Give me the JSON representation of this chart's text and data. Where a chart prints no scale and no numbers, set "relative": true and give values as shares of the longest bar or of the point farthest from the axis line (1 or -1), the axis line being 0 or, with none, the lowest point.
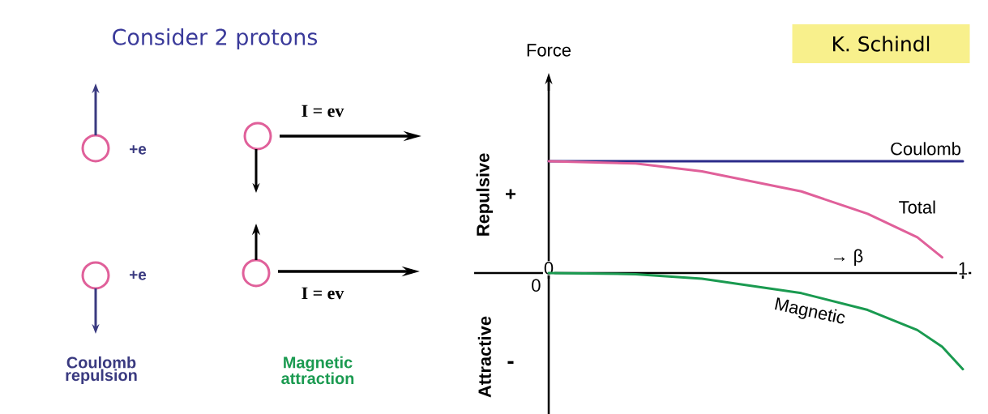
{
  "chart_data": {
    "type": "line",
    "title": "Consider 2 protons",
    "xlabel": "→ β",
    "relative": true,
    "x": [
      0,
      0.21,
      0.37,
      0.61,
      0.77,
      0.89,
      0.95,
      1.0
    ],
    "xlim": [
      -0.18,
      1.02
    ],
    "xticks": [
      0,
      1
    ],
    "series": [
      {
        "name": "Coulomb",
        "color": "#2b2b8a",
        "values": [
          1,
          1,
          1,
          1,
          1,
          1,
          1,
          1
        ]
      },
      {
        "name": "Total",
        "color": "#e0609a",
        "values": [
          1,
          0.98,
          0.91,
          0.73,
          0.53,
          0.32,
          0.14,
          null
        ]
      },
      {
        "name": "Magnetic",
        "color": "#1a9a50",
        "values": [
          0,
          -0.01,
          -0.05,
          -0.18,
          -0.33,
          -0.51,
          -0.66,
          -0.86
        ]
      }
    ],
    "annotations": [
      "K. Schindl",
      "+e",
      "+e",
      "I = ev",
      "I = ev",
      "Coulomb repulsion",
      "Magnetic attraction",
      "Repulsive",
      "+",
      "Attractive",
      "-",
      "0",
      "Force"
    ]
  }
}
